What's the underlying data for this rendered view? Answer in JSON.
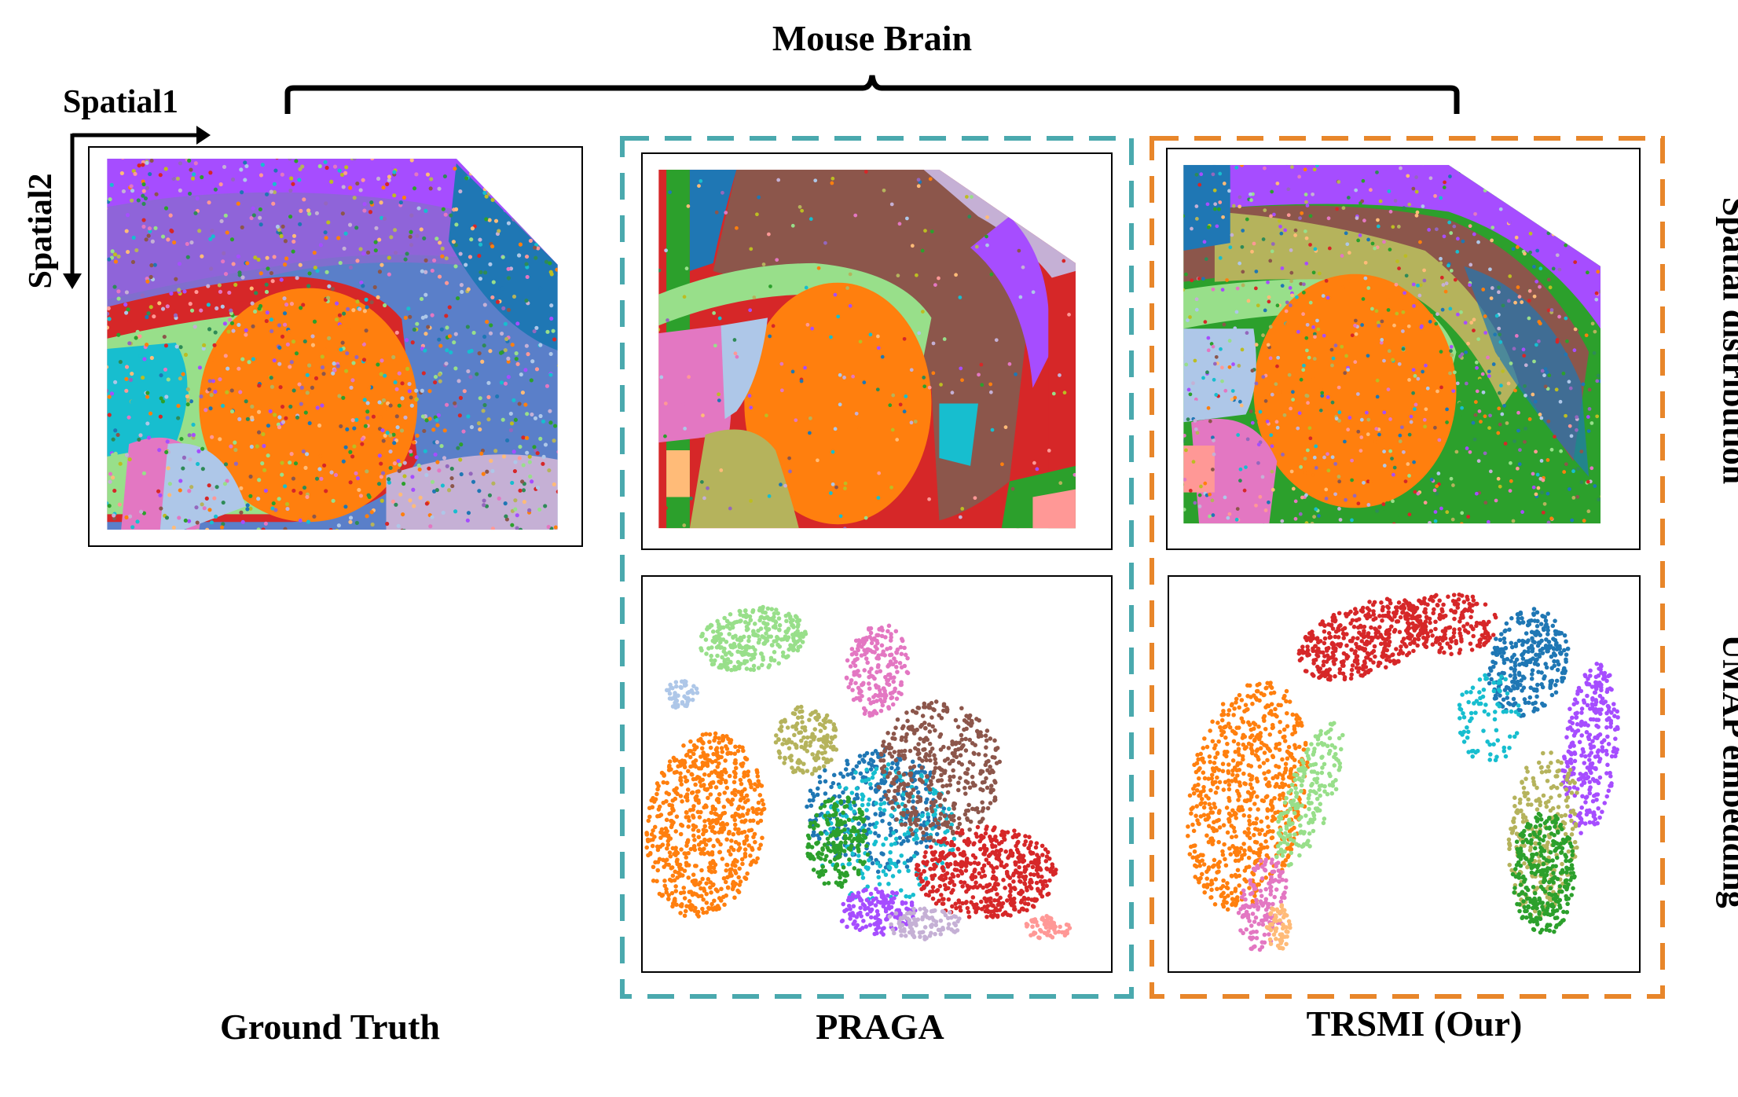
{
  "figure": {
    "title": "Mouse Brain",
    "axes": {
      "x_label": "Spatial1",
      "y_label": "Spatial2"
    },
    "row_labels": [
      "Spatial distribution",
      "UMAP embedding"
    ],
    "methods": [
      {
        "id": "ground-truth",
        "label": "Ground Truth"
      },
      {
        "id": "praga",
        "label": "PRAGA",
        "box_color": "#4aa9ae"
      },
      {
        "id": "trsmi",
        "label": "TRSMI (Our)",
        "box_color": "#e8862a"
      }
    ]
  },
  "palette": {
    "orange": "#ff7f0e",
    "blue": "#1f77b4",
    "green": "#2ca02c",
    "red": "#d62728",
    "purple": "#9467bd",
    "violet": "#a64dff",
    "brown": "#8c564b",
    "pink": "#e377c2",
    "olive": "#bcbd22",
    "light_olive": "#b5b35c",
    "cyan": "#17becf",
    "light_green": "#98df8a",
    "light_blue": "#aec7e8",
    "lilac": "#c5b0d5",
    "salmon": "#ff9896",
    "peach": "#ffbb78",
    "teal_green": "#2e8b57"
  }
}
